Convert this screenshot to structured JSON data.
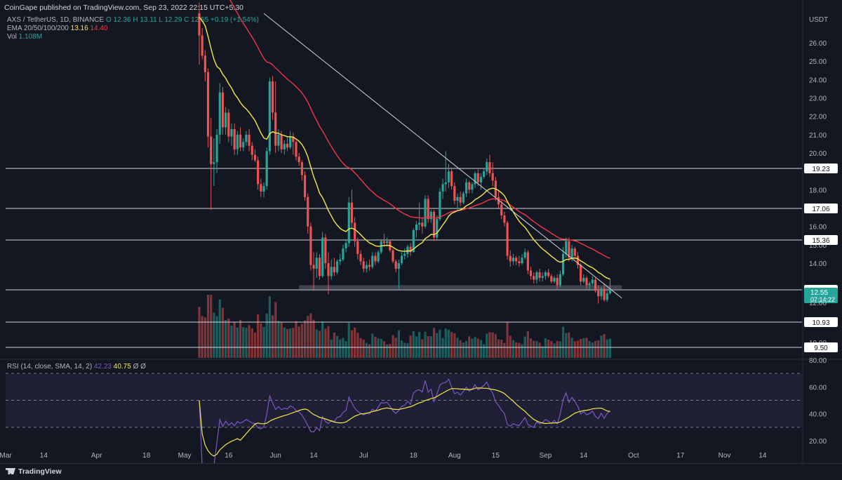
{
  "header": {
    "publisher": "CoinGape published on TradingView.com, Sep 23, 2022 22:15 UTC+5:30"
  },
  "legend": {
    "symbol": "AXS / TetherUS, 1D, BINANCE",
    "ohlc": "O 12.36  H 13.11  L 12.29  C 12.55  +0.19 (+1.54%)",
    "ema_label": "EMA 20/50/100/200",
    "ema20": "13.16",
    "ema50": "14.40",
    "vol_label": "Vol",
    "vol_value": "1.108M"
  },
  "rsi_legend": {
    "label": "RSI (14, close, SMA, 14, 2)",
    "rsi": "42.23",
    "sma": "40.75",
    "extra": "Ø  Ø"
  },
  "price_axis": {
    "unit": "USDT",
    "ticks": [
      "26.00",
      "25.00",
      "24.00",
      "23.00",
      "22.00",
      "21.00",
      "20.00",
      "18.00",
      "16.00",
      "15.00",
      "14.00",
      "10.00"
    ]
  },
  "rsi_axis": {
    "ticks": [
      "80.00",
      "60.00",
      "40.00",
      "20.00"
    ]
  },
  "level_labels": [
    "19.23",
    "17.06",
    "15.36",
    "12.65",
    "10.93",
    "9.50"
  ],
  "current_price": {
    "value": "12.55",
    "countdown": "07:14:22",
    "hidden_under": "12.00"
  },
  "time_axis": [
    "Mar",
    "14",
    "Apr",
    "18",
    "May",
    "16",
    "Jun",
    "14",
    "Jul",
    "18",
    "Aug",
    "15",
    "Sep",
    "14",
    "Oct",
    "17",
    "Nov",
    "14"
  ],
  "footer": {
    "brand": "TradingView"
  },
  "colors": {
    "background": "#131722",
    "up": "#26a69a",
    "down": "#ef5350",
    "ema20": "#f5e943",
    "ema50": "#f23645",
    "rsi": "#7e57c2",
    "level_line": "#d1d4dc"
  },
  "chart_data": {
    "type": "candlestick",
    "symbol": "AXS / TetherUS",
    "interval": "1D",
    "exchange": "BINANCE",
    "last_close": 12.55,
    "horizontal_levels": [
      19.23,
      17.06,
      15.36,
      12.65,
      10.93,
      9.5
    ],
    "support_zone": [
      12.5,
      12.8
    ],
    "trendline": {
      "from": [
        "2022-05-28",
        27.6
      ],
      "to": [
        "2022-09-27",
        12.1
      ]
    },
    "ema20_last": 13.16,
    "ema50_last": 14.4,
    "volume_last": "1.108M",
    "rsi_last": 42.23,
    "rsi_sma_last": 40.75,
    "ylim_price": [
      9.5,
      27.0
    ],
    "ylim_rsi": [
      17,
      83
    ],
    "x_range": [
      "2022-03-01",
      "2022-11-20"
    ],
    "rsi_band": [
      30,
      70
    ],
    "candles": [
      {
        "d": "2022-05-06",
        "o": 27.6,
        "h": 28.2,
        "l": 24.8,
        "c": 26.4
      },
      {
        "d": "2022-05-07",
        "o": 26.4,
        "h": 26.8,
        "l": 25.1,
        "c": 25.3
      },
      {
        "d": "2022-05-08",
        "o": 25.3,
        "h": 25.6,
        "l": 23.9,
        "c": 24.4
      },
      {
        "d": "2022-05-09",
        "o": 24.4,
        "h": 24.6,
        "l": 20.3,
        "c": 20.9
      },
      {
        "d": "2022-05-10",
        "o": 20.9,
        "h": 21.9,
        "l": 16.9,
        "c": 19.4
      },
      {
        "d": "2022-05-11",
        "o": 19.4,
        "h": 20.8,
        "l": 18.2,
        "c": 19.5
      },
      {
        "d": "2022-05-12",
        "o": 19.5,
        "h": 21.3,
        "l": 18.9,
        "c": 21.0
      },
      {
        "d": "2022-05-13",
        "o": 21.0,
        "h": 23.8,
        "l": 20.5,
        "c": 23.3
      },
      {
        "d": "2022-05-14",
        "o": 23.3,
        "h": 23.6,
        "l": 21.0,
        "c": 21.4
      },
      {
        "d": "2022-05-15",
        "o": 21.4,
        "h": 22.5,
        "l": 21.0,
        "c": 22.2
      },
      {
        "d": "2022-05-16",
        "o": 22.2,
        "h": 22.4,
        "l": 20.6,
        "c": 20.9
      },
      {
        "d": "2022-05-17",
        "o": 20.9,
        "h": 21.6,
        "l": 20.4,
        "c": 21.3
      },
      {
        "d": "2022-05-18",
        "o": 21.3,
        "h": 21.6,
        "l": 19.9,
        "c": 20.2
      },
      {
        "d": "2022-05-19",
        "o": 20.2,
        "h": 21.2,
        "l": 19.9,
        "c": 21.0
      },
      {
        "d": "2022-05-20",
        "o": 21.0,
        "h": 21.4,
        "l": 20.1,
        "c": 20.3
      },
      {
        "d": "2022-05-21",
        "o": 20.3,
        "h": 20.8,
        "l": 20.1,
        "c": 20.6
      },
      {
        "d": "2022-05-22",
        "o": 20.6,
        "h": 21.2,
        "l": 20.4,
        "c": 21.0
      },
      {
        "d": "2022-05-23",
        "o": 21.0,
        "h": 21.3,
        "l": 20.1,
        "c": 20.4
      },
      {
        "d": "2022-05-24",
        "o": 20.4,
        "h": 20.6,
        "l": 19.6,
        "c": 19.9
      },
      {
        "d": "2022-05-25",
        "o": 19.9,
        "h": 20.2,
        "l": 19.5,
        "c": 19.6
      },
      {
        "d": "2022-05-26",
        "o": 19.6,
        "h": 19.8,
        "l": 18.0,
        "c": 18.3
      },
      {
        "d": "2022-05-27",
        "o": 18.3,
        "h": 18.6,
        "l": 17.6,
        "c": 17.9
      },
      {
        "d": "2022-05-28",
        "o": 17.9,
        "h": 18.4,
        "l": 17.6,
        "c": 18.2
      },
      {
        "d": "2022-05-29",
        "o": 18.2,
        "h": 20.3,
        "l": 18.0,
        "c": 20.1
      },
      {
        "d": "2022-05-30",
        "o": 20.1,
        "h": 24.1,
        "l": 19.9,
        "c": 23.9
      },
      {
        "d": "2022-05-31",
        "o": 23.9,
        "h": 24.2,
        "l": 21.8,
        "c": 22.2
      },
      {
        "d": "2022-06-01",
        "o": 22.2,
        "h": 23.9,
        "l": 20.0,
        "c": 20.4
      },
      {
        "d": "2022-06-02",
        "o": 20.4,
        "h": 21.3,
        "l": 20.1,
        "c": 21.0
      },
      {
        "d": "2022-06-03",
        "o": 21.0,
        "h": 21.2,
        "l": 20.0,
        "c": 20.2
      },
      {
        "d": "2022-06-04",
        "o": 20.2,
        "h": 20.7,
        "l": 19.9,
        "c": 20.5
      },
      {
        "d": "2022-06-05",
        "o": 20.5,
        "h": 20.9,
        "l": 20.1,
        "c": 20.3
      },
      {
        "d": "2022-06-06",
        "o": 20.3,
        "h": 21.2,
        "l": 20.2,
        "c": 20.9
      },
      {
        "d": "2022-06-07",
        "o": 20.9,
        "h": 21.1,
        "l": 19.9,
        "c": 20.6
      },
      {
        "d": "2022-06-08",
        "o": 20.6,
        "h": 20.7,
        "l": 19.6,
        "c": 19.8
      },
      {
        "d": "2022-06-09",
        "o": 19.8,
        "h": 20.0,
        "l": 19.3,
        "c": 19.5
      },
      {
        "d": "2022-06-10",
        "o": 19.5,
        "h": 19.6,
        "l": 18.5,
        "c": 18.8
      },
      {
        "d": "2022-06-11",
        "o": 18.8,
        "h": 19.0,
        "l": 17.4,
        "c": 17.6
      },
      {
        "d": "2022-06-12",
        "o": 17.6,
        "h": 17.8,
        "l": 15.6,
        "c": 16.0
      },
      {
        "d": "2022-06-13",
        "o": 16.0,
        "h": 16.2,
        "l": 13.6,
        "c": 13.9
      },
      {
        "d": "2022-06-14",
        "o": 13.9,
        "h": 14.6,
        "l": 12.5,
        "c": 13.7
      },
      {
        "d": "2022-06-15",
        "o": 13.7,
        "h": 14.6,
        "l": 13.2,
        "c": 14.3
      },
      {
        "d": "2022-06-16",
        "o": 14.3,
        "h": 14.5,
        "l": 13.1,
        "c": 13.3
      },
      {
        "d": "2022-06-17",
        "o": 13.3,
        "h": 15.7,
        "l": 13.2,
        "c": 15.4
      },
      {
        "d": "2022-06-18",
        "o": 15.4,
        "h": 15.6,
        "l": 13.7,
        "c": 14.0
      },
      {
        "d": "2022-06-19",
        "o": 14.0,
        "h": 14.6,
        "l": 12.3,
        "c": 13.3
      },
      {
        "d": "2022-06-20",
        "o": 13.3,
        "h": 14.2,
        "l": 13.1,
        "c": 13.8
      },
      {
        "d": "2022-06-21",
        "o": 13.8,
        "h": 14.3,
        "l": 13.3,
        "c": 13.5
      },
      {
        "d": "2022-06-22",
        "o": 13.5,
        "h": 14.2,
        "l": 13.4,
        "c": 14.1
      },
      {
        "d": "2022-06-23",
        "o": 14.1,
        "h": 14.5,
        "l": 13.9,
        "c": 14.2
      },
      {
        "d": "2022-06-24",
        "o": 14.2,
        "h": 15.0,
        "l": 14.1,
        "c": 14.8
      },
      {
        "d": "2022-06-25",
        "o": 14.8,
        "h": 15.3,
        "l": 14.6,
        "c": 15.1
      },
      {
        "d": "2022-06-26",
        "o": 15.1,
        "h": 17.6,
        "l": 14.9,
        "c": 17.3
      },
      {
        "d": "2022-06-27",
        "o": 17.3,
        "h": 18.0,
        "l": 15.9,
        "c": 16.2
      },
      {
        "d": "2022-06-28",
        "o": 16.2,
        "h": 16.5,
        "l": 14.9,
        "c": 15.2
      },
      {
        "d": "2022-06-29",
        "o": 15.2,
        "h": 15.4,
        "l": 14.2,
        "c": 14.5
      },
      {
        "d": "2022-06-30",
        "o": 14.5,
        "h": 14.7,
        "l": 13.9,
        "c": 14.1
      },
      {
        "d": "2022-07-01",
        "o": 14.1,
        "h": 14.3,
        "l": 13.5,
        "c": 13.7
      },
      {
        "d": "2022-07-02",
        "o": 13.7,
        "h": 14.1,
        "l": 13.5,
        "c": 13.9
      },
      {
        "d": "2022-07-03",
        "o": 13.9,
        "h": 14.2,
        "l": 13.6,
        "c": 13.8
      },
      {
        "d": "2022-07-04",
        "o": 13.8,
        "h": 14.6,
        "l": 13.7,
        "c": 14.4
      },
      {
        "d": "2022-07-05",
        "o": 14.4,
        "h": 14.6,
        "l": 13.9,
        "c": 14.1
      },
      {
        "d": "2022-07-06",
        "o": 14.1,
        "h": 14.7,
        "l": 14.0,
        "c": 14.6
      },
      {
        "d": "2022-07-07",
        "o": 14.6,
        "h": 15.3,
        "l": 14.5,
        "c": 15.2
      },
      {
        "d": "2022-07-08",
        "o": 15.2,
        "h": 15.6,
        "l": 14.9,
        "c": 15.1
      },
      {
        "d": "2022-07-09",
        "o": 15.1,
        "h": 15.4,
        "l": 14.9,
        "c": 15.2
      },
      {
        "d": "2022-07-10",
        "o": 15.2,
        "h": 15.3,
        "l": 14.6,
        "c": 14.7
      },
      {
        "d": "2022-07-11",
        "o": 14.7,
        "h": 14.8,
        "l": 14.0,
        "c": 14.1
      },
      {
        "d": "2022-07-12",
        "o": 14.1,
        "h": 14.2,
        "l": 13.5,
        "c": 13.7
      },
      {
        "d": "2022-07-13",
        "o": 13.7,
        "h": 14.2,
        "l": 12.6,
        "c": 14.0
      },
      {
        "d": "2022-07-14",
        "o": 14.0,
        "h": 14.6,
        "l": 13.9,
        "c": 14.4
      },
      {
        "d": "2022-07-15",
        "o": 14.4,
        "h": 14.8,
        "l": 14.2,
        "c": 14.5
      },
      {
        "d": "2022-07-16",
        "o": 14.5,
        "h": 15.0,
        "l": 14.3,
        "c": 14.9
      },
      {
        "d": "2022-07-17",
        "o": 14.9,
        "h": 15.1,
        "l": 14.4,
        "c": 14.6
      },
      {
        "d": "2022-07-18",
        "o": 14.6,
        "h": 15.9,
        "l": 14.6,
        "c": 15.8
      },
      {
        "d": "2022-07-19",
        "o": 15.8,
        "h": 16.3,
        "l": 15.4,
        "c": 16.1
      },
      {
        "d": "2022-07-20",
        "o": 16.1,
        "h": 17.3,
        "l": 15.8,
        "c": 16.2
      },
      {
        "d": "2022-07-21",
        "o": 16.2,
        "h": 16.5,
        "l": 15.6,
        "c": 16.0
      },
      {
        "d": "2022-07-22",
        "o": 16.0,
        "h": 17.7,
        "l": 15.9,
        "c": 17.5
      },
      {
        "d": "2022-07-23",
        "o": 17.5,
        "h": 17.7,
        "l": 16.2,
        "c": 16.4
      },
      {
        "d": "2022-07-24",
        "o": 16.4,
        "h": 16.9,
        "l": 16.2,
        "c": 16.8
      },
      {
        "d": "2022-07-25",
        "o": 16.8,
        "h": 16.9,
        "l": 15.2,
        "c": 15.4
      },
      {
        "d": "2022-07-26",
        "o": 15.4,
        "h": 16.6,
        "l": 15.3,
        "c": 16.4
      },
      {
        "d": "2022-07-27",
        "o": 16.4,
        "h": 18.1,
        "l": 16.3,
        "c": 17.9
      },
      {
        "d": "2022-07-28",
        "o": 17.9,
        "h": 18.6,
        "l": 17.5,
        "c": 18.3
      },
      {
        "d": "2022-07-29",
        "o": 18.3,
        "h": 20.1,
        "l": 17.9,
        "c": 18.4
      },
      {
        "d": "2022-07-30",
        "o": 18.4,
        "h": 19.4,
        "l": 18.1,
        "c": 19.0
      },
      {
        "d": "2022-07-31",
        "o": 19.0,
        "h": 19.2,
        "l": 18.0,
        "c": 18.2
      },
      {
        "d": "2022-08-01",
        "o": 18.2,
        "h": 18.4,
        "l": 17.2,
        "c": 17.4
      },
      {
        "d": "2022-08-02",
        "o": 17.4,
        "h": 17.8,
        "l": 16.9,
        "c": 17.6
      },
      {
        "d": "2022-08-03",
        "o": 17.6,
        "h": 17.9,
        "l": 17.1,
        "c": 17.3
      },
      {
        "d": "2022-08-04",
        "o": 17.3,
        "h": 17.9,
        "l": 17.2,
        "c": 17.8
      },
      {
        "d": "2022-08-05",
        "o": 17.8,
        "h": 18.6,
        "l": 17.6,
        "c": 18.4
      },
      {
        "d": "2022-08-06",
        "o": 18.4,
        "h": 18.5,
        "l": 17.8,
        "c": 18.0
      },
      {
        "d": "2022-08-07",
        "o": 18.0,
        "h": 18.4,
        "l": 17.8,
        "c": 18.3
      },
      {
        "d": "2022-08-08",
        "o": 18.3,
        "h": 19.0,
        "l": 18.1,
        "c": 18.9
      },
      {
        "d": "2022-08-09",
        "o": 18.9,
        "h": 19.1,
        "l": 18.2,
        "c": 18.4
      },
      {
        "d": "2022-08-10",
        "o": 18.4,
        "h": 18.9,
        "l": 18.0,
        "c": 18.7
      },
      {
        "d": "2022-08-11",
        "o": 18.7,
        "h": 19.2,
        "l": 18.6,
        "c": 19.0
      },
      {
        "d": "2022-08-12",
        "o": 19.0,
        "h": 19.7,
        "l": 18.8,
        "c": 19.5
      },
      {
        "d": "2022-08-13",
        "o": 19.5,
        "h": 19.9,
        "l": 18.7,
        "c": 18.9
      },
      {
        "d": "2022-08-14",
        "o": 18.9,
        "h": 19.5,
        "l": 18.2,
        "c": 18.5
      },
      {
        "d": "2022-08-15",
        "o": 18.5,
        "h": 18.7,
        "l": 17.4,
        "c": 17.6
      },
      {
        "d": "2022-08-16",
        "o": 17.6,
        "h": 17.9,
        "l": 17.0,
        "c": 17.2
      },
      {
        "d": "2022-08-17",
        "o": 17.2,
        "h": 17.4,
        "l": 16.4,
        "c": 16.6
      },
      {
        "d": "2022-08-18",
        "o": 16.6,
        "h": 16.8,
        "l": 16.0,
        "c": 16.2
      },
      {
        "d": "2022-08-19",
        "o": 16.2,
        "h": 16.3,
        "l": 14.2,
        "c": 14.4
      },
      {
        "d": "2022-08-20",
        "o": 14.4,
        "h": 14.7,
        "l": 13.8,
        "c": 14.1
      },
      {
        "d": "2022-08-21",
        "o": 14.1,
        "h": 14.5,
        "l": 13.9,
        "c": 14.3
      },
      {
        "d": "2022-08-22",
        "o": 14.3,
        "h": 14.4,
        "l": 13.9,
        "c": 14.1
      },
      {
        "d": "2022-08-23",
        "o": 14.1,
        "h": 14.4,
        "l": 13.8,
        "c": 14.0
      },
      {
        "d": "2022-08-24",
        "o": 14.0,
        "h": 14.5,
        "l": 13.9,
        "c": 14.3
      },
      {
        "d": "2022-08-25",
        "o": 14.3,
        "h": 14.8,
        "l": 14.2,
        "c": 14.6
      },
      {
        "d": "2022-08-26",
        "o": 14.6,
        "h": 14.7,
        "l": 13.4,
        "c": 13.6
      },
      {
        "d": "2022-08-27",
        "o": 13.6,
        "h": 13.8,
        "l": 13.1,
        "c": 13.3
      },
      {
        "d": "2022-08-28",
        "o": 13.3,
        "h": 13.5,
        "l": 12.9,
        "c": 13.1
      },
      {
        "d": "2022-08-29",
        "o": 13.1,
        "h": 13.6,
        "l": 12.9,
        "c": 13.5
      },
      {
        "d": "2022-08-30",
        "o": 13.5,
        "h": 13.7,
        "l": 13.0,
        "c": 13.2
      },
      {
        "d": "2022-08-31",
        "o": 13.2,
        "h": 13.5,
        "l": 13.0,
        "c": 13.3
      },
      {
        "d": "2022-09-01",
        "o": 13.3,
        "h": 13.6,
        "l": 13.1,
        "c": 13.5
      },
      {
        "d": "2022-09-02",
        "o": 13.5,
        "h": 13.7,
        "l": 13.2,
        "c": 13.3
      },
      {
        "d": "2022-09-03",
        "o": 13.3,
        "h": 13.4,
        "l": 12.9,
        "c": 13.0
      },
      {
        "d": "2022-09-04",
        "o": 13.0,
        "h": 13.3,
        "l": 12.9,
        "c": 13.2
      },
      {
        "d": "2022-09-05",
        "o": 13.2,
        "h": 13.4,
        "l": 12.6,
        "c": 12.8
      },
      {
        "d": "2022-09-06",
        "o": 12.8,
        "h": 13.6,
        "l": 12.7,
        "c": 13.4
      },
      {
        "d": "2022-09-07",
        "o": 13.4,
        "h": 14.9,
        "l": 13.3,
        "c": 14.5
      },
      {
        "d": "2022-09-08",
        "o": 14.5,
        "h": 15.4,
        "l": 14.3,
        "c": 15.2
      },
      {
        "d": "2022-09-09",
        "o": 15.2,
        "h": 15.4,
        "l": 14.1,
        "c": 14.3
      },
      {
        "d": "2022-09-10",
        "o": 14.3,
        "h": 15.0,
        "l": 14.1,
        "c": 14.8
      },
      {
        "d": "2022-09-11",
        "o": 14.8,
        "h": 14.9,
        "l": 14.2,
        "c": 14.4
      },
      {
        "d": "2022-09-12",
        "o": 14.4,
        "h": 14.6,
        "l": 13.7,
        "c": 13.9
      },
      {
        "d": "2022-09-13",
        "o": 13.9,
        "h": 14.0,
        "l": 12.8,
        "c": 13.0
      },
      {
        "d": "2022-09-14",
        "o": 13.0,
        "h": 13.4,
        "l": 12.9,
        "c": 13.2
      },
      {
        "d": "2022-09-15",
        "o": 13.2,
        "h": 13.3,
        "l": 12.6,
        "c": 12.8
      },
      {
        "d": "2022-09-16",
        "o": 12.8,
        "h": 13.0,
        "l": 12.5,
        "c": 12.9
      },
      {
        "d": "2022-09-17",
        "o": 12.9,
        "h": 13.3,
        "l": 12.8,
        "c": 13.1
      },
      {
        "d": "2022-09-18",
        "o": 13.1,
        "h": 13.2,
        "l": 12.4,
        "c": 12.5
      },
      {
        "d": "2022-09-19",
        "o": 12.5,
        "h": 12.8,
        "l": 11.8,
        "c": 12.2
      },
      {
        "d": "2022-09-20",
        "o": 12.2,
        "h": 12.7,
        "l": 12.0,
        "c": 12.6
      },
      {
        "d": "2022-09-21",
        "o": 12.6,
        "h": 12.9,
        "l": 11.9,
        "c": 12.0
      },
      {
        "d": "2022-09-22",
        "o": 12.0,
        "h": 12.5,
        "l": 11.9,
        "c": 12.36
      },
      {
        "d": "2022-09-23",
        "o": 12.36,
        "h": 13.11,
        "l": 12.29,
        "c": 12.55
      }
    ]
  }
}
